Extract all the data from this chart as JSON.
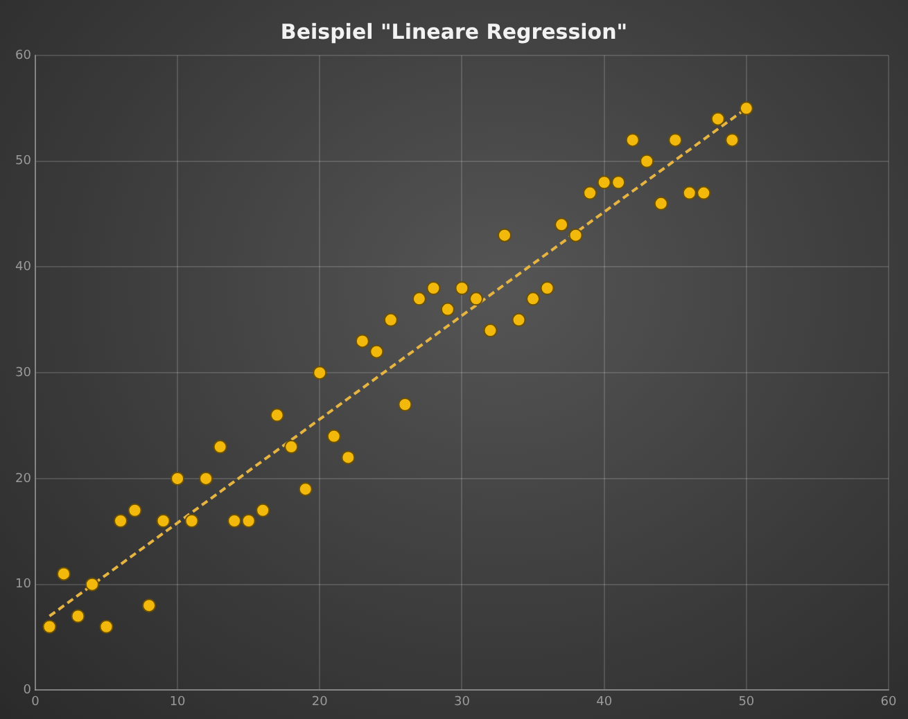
{
  "chart_data": {
    "type": "scatter",
    "title": "Beispiel \"Lineare Regression\"",
    "series": [
      {
        "color": "#f2b90c",
        "x": [
          1,
          2,
          3,
          4,
          5,
          6,
          7,
          8,
          9,
          10,
          11,
          12,
          13,
          14,
          15,
          16,
          17,
          18,
          19,
          20,
          21,
          22,
          23,
          24,
          25,
          26,
          27,
          28,
          29,
          30,
          31,
          32,
          33,
          34,
          35,
          36,
          37,
          38,
          39,
          40,
          41,
          42,
          43,
          44,
          45,
          46,
          47,
          48,
          49,
          50
        ],
        "values": [
          6,
          11,
          7,
          10,
          6,
          16,
          17,
          8,
          16,
          20,
          16,
          20,
          23,
          16,
          16,
          17,
          26,
          23,
          19,
          30,
          24,
          22,
          33,
          32,
          35,
          27,
          37,
          38,
          36,
          38,
          37,
          34,
          43,
          35,
          37,
          38,
          44,
          43,
          47,
          48,
          48,
          52,
          50,
          46,
          52,
          47,
          47,
          54,
          52,
          55
        ]
      },
      {
        "type": "line",
        "color": "#e6b440",
        "line_style": "dashed",
        "marker": "none",
        "x": [
          1,
          50
        ],
        "values": [
          7,
          55
        ]
      }
    ],
    "xlim": [
      0,
      60
    ],
    "xticks": [
      0,
      10,
      20,
      30,
      40,
      50,
      60
    ],
    "ylim": [
      0,
      60
    ],
    "yticks": [
      0,
      10,
      20,
      30,
      40,
      50,
      60
    ],
    "grid": true,
    "marker": "circle",
    "legend": false
  }
}
